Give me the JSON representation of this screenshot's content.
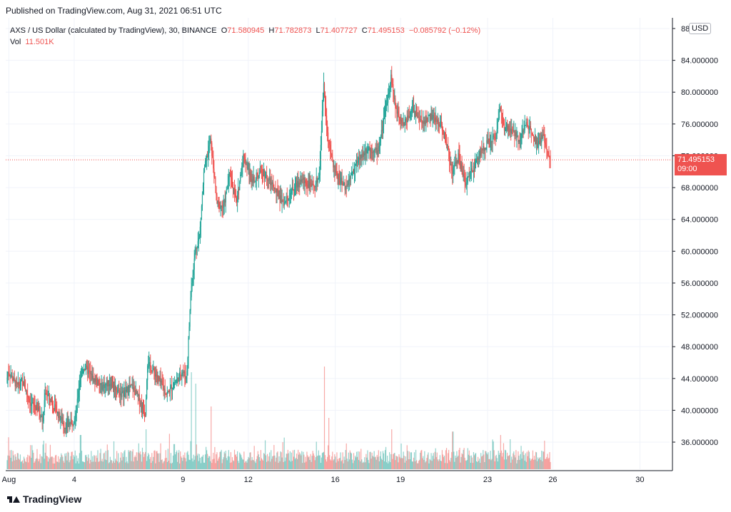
{
  "published": "Published on TradingView.com, Aug 31, 2021 06:51 UTC",
  "legend": {
    "symbol": "AXS / US Dollar (calculated by TradingView), 30, BINANCE",
    "o_label": "O",
    "o_value": "71.580945",
    "h_label": "H",
    "h_value": "71.782873",
    "l_label": "L",
    "l_value": "71.407727",
    "c_label": "C",
    "c_value": "71.495153",
    "change": "−0.085792 (−0.12%)",
    "vol_label": "Vol",
    "vol_value": "11.501K"
  },
  "currency": "USD",
  "last_price": {
    "value": "71.495153",
    "countdown": "09:00"
  },
  "brand": "TradingView",
  "colors": {
    "up": "#26a69a",
    "down": "#ef5350",
    "grid": "#f0f3fa",
    "axis": "#131722"
  },
  "chart_data": {
    "type": "candlestick",
    "symbol": "AXSUSD",
    "interval": "30",
    "ylim": [
      32,
      89
    ],
    "y_ticks": [
      "88",
      "84.000000",
      "80.000000",
      "76.000000",
      "72.000000",
      "68.000000",
      "64.000000",
      "60.000000",
      "56.000000",
      "52.000000",
      "48.000000",
      "44.000000",
      "40.000000",
      "36.000000"
    ],
    "y_tick_values": [
      88,
      84,
      80,
      76,
      72,
      68,
      64,
      60,
      56,
      52,
      48,
      44,
      40,
      36
    ],
    "x_ticks": [
      "Aug",
      "4",
      "9",
      "12",
      "16",
      "19",
      "23",
      "26",
      "30"
    ],
    "x_tick_days": [
      1,
      4,
      9,
      12,
      16,
      19,
      23,
      26,
      30
    ],
    "x_range_days": [
      0.92,
      31.3
    ],
    "last_close": 71.495153,
    "price_path": [
      [
        0.92,
        43.5
      ],
      [
        1.0,
        45.0
      ],
      [
        1.4,
        43.0
      ],
      [
        1.7,
        43.5
      ],
      [
        2.0,
        41.0
      ],
      [
        2.4,
        40.0
      ],
      [
        2.6,
        38.5
      ],
      [
        2.7,
        42.5
      ],
      [
        3.0,
        41.0
      ],
      [
        3.3,
        39.5
      ],
      [
        3.6,
        38.0
      ],
      [
        3.9,
        38.5
      ],
      [
        4.1,
        39.0
      ],
      [
        4.3,
        44.0
      ],
      [
        4.5,
        45.5
      ],
      [
        4.9,
        44.0
      ],
      [
        5.3,
        43.0
      ],
      [
        5.7,
        43.5
      ],
      [
        6.2,
        42.0
      ],
      [
        6.7,
        43.0
      ],
      [
        7.0,
        41.5
      ],
      [
        7.3,
        39.5
      ],
      [
        7.4,
        46.0
      ],
      [
        7.9,
        44.0
      ],
      [
        8.3,
        42.0
      ],
      [
        8.7,
        43.5
      ],
      [
        9.0,
        45.0
      ],
      [
        9.2,
        44.0
      ],
      [
        9.4,
        55.0
      ],
      [
        9.6,
        60.0
      ],
      [
        9.8,
        62.0
      ],
      [
        10.0,
        70.0
      ],
      [
        10.3,
        74.0
      ],
      [
        10.6,
        66.0
      ],
      [
        10.9,
        65.5
      ],
      [
        11.2,
        70.0
      ],
      [
        11.5,
        66.0
      ],
      [
        11.8,
        72.0
      ],
      [
        12.2,
        69.0
      ],
      [
        12.7,
        70.0
      ],
      [
        13.2,
        68.0
      ],
      [
        13.7,
        66.0
      ],
      [
        14.0,
        67.5
      ],
      [
        14.5,
        69.0
      ],
      [
        15.0,
        68.0
      ],
      [
        15.3,
        69.5
      ],
      [
        15.5,
        81.0
      ],
      [
        15.7,
        74.0
      ],
      [
        16.0,
        70.0
      ],
      [
        16.5,
        68.0
      ],
      [
        17.0,
        71.0
      ],
      [
        17.5,
        73.0
      ],
      [
        18.0,
        72.5
      ],
      [
        18.3,
        77.0
      ],
      [
        18.6,
        82.0
      ],
      [
        18.8,
        78.0
      ],
      [
        19.2,
        76.0
      ],
      [
        19.6,
        78.0
      ],
      [
        20.0,
        76.0
      ],
      [
        20.4,
        77.0
      ],
      [
        20.9,
        76.0
      ],
      [
        21.2,
        73.0
      ],
      [
        21.4,
        70.0
      ],
      [
        21.7,
        72.0
      ],
      [
        22.0,
        68.5
      ],
      [
        22.4,
        70.5
      ],
      [
        22.7,
        72.5
      ],
      [
        23.0,
        73.5
      ],
      [
        23.4,
        74.5
      ],
      [
        23.6,
        78.0
      ],
      [
        23.8,
        75.5
      ],
      [
        24.2,
        75.0
      ],
      [
        24.5,
        74.0
      ],
      [
        24.8,
        76.0
      ],
      [
        25.1,
        75.0
      ],
      [
        25.3,
        73.5
      ],
      [
        25.6,
        74.5
      ],
      [
        25.8,
        72.0
      ],
      [
        25.92,
        71.5
      ]
    ],
    "volume_unit_note": "",
    "volume_spikes": [
      [
        1.0,
        0.28
      ],
      [
        2.6,
        0.25
      ],
      [
        4.3,
        0.3
      ],
      [
        7.3,
        0.35
      ],
      [
        8.6,
        0.22
      ],
      [
        9.4,
        0.85
      ],
      [
        9.6,
        0.75
      ],
      [
        10.3,
        0.55
      ],
      [
        15.5,
        0.9
      ],
      [
        15.7,
        0.45
      ],
      [
        18.6,
        0.35
      ],
      [
        21.4,
        0.33
      ],
      [
        23.6,
        0.3
      ]
    ]
  }
}
